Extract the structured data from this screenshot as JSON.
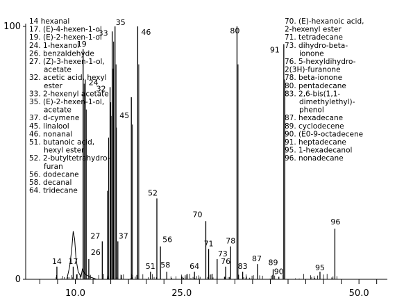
{
  "chart_data": {
    "type": "line",
    "title": "",
    "xlabel": "",
    "ylabel": "",
    "xlim": [
      3.0,
      54.0
    ],
    "ylim": [
      0,
      100
    ],
    "x_ticks": [
      {
        "value": 10.0,
        "label": "10.0"
      },
      {
        "value": 25.0,
        "label": "25.0"
      },
      {
        "value": 50.0,
        "label": "50.0"
      }
    ],
    "y_ticks": [
      {
        "value": 0,
        "label": "0"
      },
      {
        "value": 100,
        "label": "100"
      }
    ],
    "minor_tick_step": 2.5,
    "peaks": [
      {
        "id": "14",
        "x": 7.4,
        "y": 5
      },
      {
        "id": "17",
        "x": 9.7,
        "y": 5
      },
      {
        "id": "19",
        "x": 11.1,
        "y": 91
      },
      {
        "id": "24",
        "x": 11.4,
        "y": 79
      },
      {
        "id": "26",
        "x": 11.9,
        "y": 8
      },
      {
        "id": "27",
        "x": 13.8,
        "y": 15
      },
      {
        "id": "32",
        "x": 14.9,
        "y": 76
      },
      {
        "id": "33",
        "x": 15.2,
        "y": 98
      },
      {
        "id": "35",
        "x": 15.6,
        "y": 100
      },
      {
        "id": "37",
        "x": 16.0,
        "y": 15
      },
      {
        "id": "45",
        "x": 17.9,
        "y": 72
      },
      {
        "id": "46",
        "x": 18.8,
        "y": 100
      },
      {
        "id": "51",
        "x": 20.6,
        "y": 3
      },
      {
        "id": "52",
        "x": 21.5,
        "y": 32
      },
      {
        "id": "56",
        "x": 22.0,
        "y": 13
      },
      {
        "id": "58",
        "x": 22.9,
        "y": 3
      },
      {
        "id": "64",
        "x": 26.8,
        "y": 3
      },
      {
        "id": "70",
        "x": 28.4,
        "y": 23
      },
      {
        "id": "71",
        "x": 28.8,
        "y": 12
      },
      {
        "id": "73",
        "x": 30.0,
        "y": 8
      },
      {
        "id": "76",
        "x": 31.2,
        "y": 5
      },
      {
        "id": "78",
        "x": 31.9,
        "y": 13
      },
      {
        "id": "80",
        "x": 32.8,
        "y": 100
      },
      {
        "id": "83",
        "x": 33.6,
        "y": 3
      },
      {
        "id": "87",
        "x": 35.7,
        "y": 6
      },
      {
        "id": "89",
        "x": 37.9,
        "y": 4
      },
      {
        "id": "90",
        "x": 38.7,
        "y": 1
      },
      {
        "id": "91",
        "x": 39.4,
        "y": 93
      },
      {
        "id": "95",
        "x": 44.5,
        "y": 3
      },
      {
        "id": "96",
        "x": 46.6,
        "y": 20
      }
    ],
    "legend_left": [
      "14 hexanal",
      "17. (E)-4-hexen-1-ol",
      "19. (E)-2-hexen-1-ol",
      "24. 1-hexanol",
      "26. benzaldehyde",
      "27. (Z)-3-hexen-1-ol,",
      "acetate",
      "32. acetic acid, hexyl",
      "ester",
      "33. 2-hexenyl acetate",
      "35. (E)-2-hexen-1-ol,",
      "acetate",
      "37. d-cymene",
      "45. linalool",
      "46. nonanal",
      "51. butanoic acid,",
      "hexyl ester",
      "52. 2-butyltetrahydro-",
      "furan",
      "56. dodecane",
      "58. decanal",
      "64. tridecane"
    ],
    "legend_right": [
      "70. (E)-hexanoic acid,",
      "2-hexenyl ester",
      "71. tetradecane",
      "73. dihydro-beta-",
      "ionone",
      "76. 5-hexyldihydro-",
      "2(3H)-furanone",
      "78. beta-ionone",
      "80. pentadecane",
      "83. 2,6-bis(1,1-",
      "dimethylethyl)-",
      "phenol",
      "87. hexadecane",
      "89. cyclodecene",
      "90. (E0-9-octadecene",
      "91. heptadecane",
      "95. 1-hexadecanol",
      "96. nonadecane"
    ]
  }
}
